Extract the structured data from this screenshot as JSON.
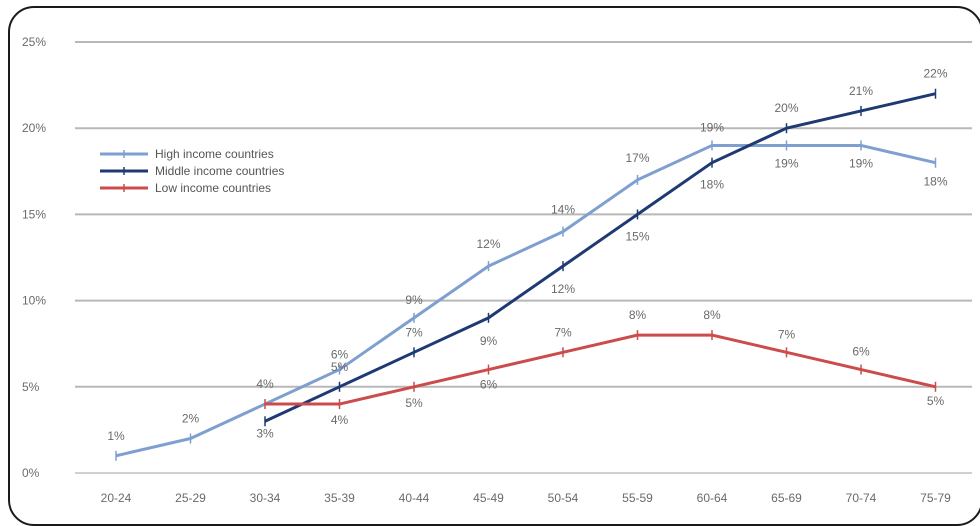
{
  "chart_data": {
    "type": "line",
    "title": "",
    "xlabel": "",
    "ylabel": "",
    "categories": [
      "20-24",
      "25-29",
      "30-34",
      "35-39",
      "40-44",
      "45-49",
      "50-54",
      "55-59",
      "60-64",
      "65-69",
      "70-74",
      "75-79"
    ],
    "y_ticks": [
      "0%",
      "5%",
      "10%",
      "15%",
      "20%",
      "25%"
    ],
    "ylim": [
      0,
      25
    ],
    "grid": true,
    "legend_position": "top-left",
    "series": [
      {
        "name": "High income countries",
        "color": "#7e9fd0",
        "values": [
          1,
          2,
          null,
          6,
          9,
          12,
          14,
          17,
          19,
          19,
          19,
          18
        ],
        "labels": [
          "1%",
          "2%",
          "",
          "6%",
          "9%",
          "12%",
          "14%",
          "17%",
          "19%",
          "19%",
          "19%",
          "18%"
        ]
      },
      {
        "name": "Middle income countries",
        "color": "#1f3a73",
        "values": [
          null,
          null,
          3,
          5,
          7,
          9,
          12,
          15,
          18,
          20,
          21,
          22
        ],
        "labels": [
          "",
          "",
          "3%",
          "5%",
          "7%",
          "9%",
          "12%",
          "15%",
          "18%",
          "20%",
          "21%",
          "22%"
        ]
      },
      {
        "name": "Low income countries",
        "color": "#cc4b4b",
        "values": [
          null,
          null,
          4,
          4,
          5,
          6,
          7,
          8,
          8,
          7,
          6,
          5
        ],
        "labels": [
          "",
          "",
          "4%",
          "4%",
          "5%",
          "6%",
          "7%",
          "8%",
          "8%",
          "7%",
          "6%",
          "5%"
        ]
      }
    ]
  }
}
